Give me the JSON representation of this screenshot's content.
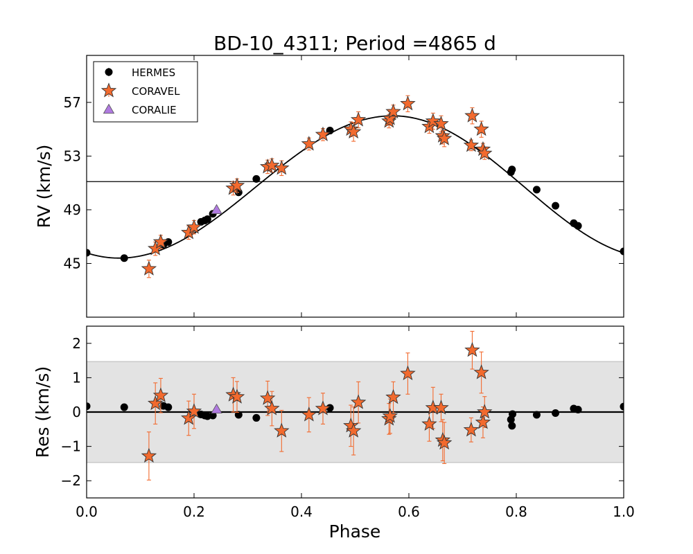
{
  "chart_data": [
    {
      "type": "scatter",
      "title": "BD-10_4311; Period =4865 d",
      "xlabel": "Phase",
      "ylabel": "RV (km/s)",
      "xlim": [
        0.0,
        1.0
      ],
      "ylim": [
        41.0,
        60.5
      ],
      "yticks": [
        45,
        49,
        53,
        57
      ],
      "ytick_labels": [
        "45",
        "49",
        "53",
        "57"
      ],
      "systemic_velocity": 51.1,
      "legend": {
        "placement": "top-left",
        "entries": [
          "HERMES",
          "CORAVEL",
          "CORALIE"
        ]
      },
      "series": [
        {
          "name": "HERMES",
          "marker": "circle",
          "color": "#000000",
          "points": [
            [
              0.0,
              45.8
            ],
            [
              0.07,
              45.4
            ],
            [
              0.143,
              46.4
            ],
            [
              0.152,
              46.6
            ],
            [
              0.213,
              48.1
            ],
            [
              0.22,
              48.2
            ],
            [
              0.225,
              48.3
            ],
            [
              0.235,
              48.7
            ],
            [
              0.283,
              50.3
            ],
            [
              0.316,
              51.3
            ],
            [
              0.453,
              54.9
            ],
            [
              0.79,
              51.8
            ],
            [
              0.792,
              52.0
            ],
            [
              0.838,
              50.5
            ],
            [
              0.873,
              49.3
            ],
            [
              0.907,
              48.0
            ],
            [
              0.915,
              47.8
            ],
            [
              1.0,
              45.9
            ]
          ]
        },
        {
          "name": "CORAVEL",
          "marker": "star",
          "color": "#f26a2e",
          "points": [
            [
              0.116,
              44.6,
              0.65
            ],
            [
              0.128,
              46.1,
              0.5
            ],
            [
              0.138,
              46.6,
              0.5
            ],
            [
              0.19,
              47.3,
              0.5
            ],
            [
              0.2,
              47.7,
              0.5
            ],
            [
              0.273,
              50.6,
              0.5
            ],
            [
              0.28,
              50.8,
              0.5
            ],
            [
              0.337,
              52.2,
              0.5
            ],
            [
              0.345,
              52.3,
              0.5
            ],
            [
              0.363,
              52.1,
              0.55
            ],
            [
              0.414,
              53.9,
              0.45
            ],
            [
              0.44,
              54.6,
              0.45
            ],
            [
              0.492,
              55.0,
              0.55
            ],
            [
              0.497,
              54.8,
              0.7
            ],
            [
              0.506,
              55.7,
              0.6
            ],
            [
              0.563,
              55.6,
              0.5
            ],
            [
              0.565,
              55.8,
              0.5
            ],
            [
              0.571,
              56.3,
              0.5
            ],
            [
              0.598,
              56.9,
              0.6
            ],
            [
              0.638,
              55.2,
              0.5
            ],
            [
              0.645,
              55.6,
              0.6
            ],
            [
              0.66,
              55.4,
              0.6
            ],
            [
              0.663,
              54.5,
              0.6
            ],
            [
              0.666,
              54.3,
              0.6
            ],
            [
              0.716,
              53.8,
              0.4
            ],
            [
              0.718,
              56.0,
              0.6
            ],
            [
              0.735,
              55.0,
              0.6
            ],
            [
              0.738,
              53.5,
              0.45
            ],
            [
              0.741,
              53.2,
              0.45
            ]
          ]
        },
        {
          "name": "CORALIE",
          "marker": "triangle",
          "color": "#b07ae0",
          "points": [
            [
              0.242,
              49.0
            ]
          ]
        }
      ],
      "model": {
        "type": "keplerian",
        "min": 45.4,
        "min_phase": 0.06,
        "max": 56.0,
        "max_phase": 0.57
      }
    },
    {
      "type": "scatter",
      "xlabel": "Phase",
      "ylabel": "Res (km/s)",
      "xlim": [
        0.0,
        1.0
      ],
      "ylim": [
        -2.5,
        2.5
      ],
      "xticks": [
        0.0,
        0.2,
        0.4,
        0.6,
        0.8,
        1.0
      ],
      "xtick_labels": [
        "0.0",
        "0.2",
        "0.4",
        "0.6",
        "0.8",
        "1.0"
      ],
      "yticks": [
        -2,
        -1,
        0,
        1,
        2
      ],
      "ytick_labels": [
        "−2",
        "−1",
        "0",
        "1",
        "2"
      ],
      "band": [
        -1.47,
        1.47
      ],
      "series": [
        {
          "name": "HERMES",
          "marker": "circle",
          "color": "#000000",
          "points": [
            [
              0.0,
              0.17
            ],
            [
              0.07,
              0.14
            ],
            [
              0.143,
              0.18
            ],
            [
              0.152,
              0.14
            ],
            [
              0.213,
              -0.07
            ],
            [
              0.22,
              -0.1
            ],
            [
              0.225,
              -0.12
            ],
            [
              0.235,
              -0.1
            ],
            [
              0.283,
              -0.08
            ],
            [
              0.316,
              -0.17
            ],
            [
              0.453,
              0.12
            ],
            [
              0.79,
              -0.22
            ],
            [
              0.792,
              -0.4
            ],
            [
              0.793,
              -0.06
            ],
            [
              0.838,
              -0.08
            ],
            [
              0.873,
              -0.03
            ],
            [
              0.907,
              0.1
            ],
            [
              0.915,
              0.07
            ],
            [
              1.0,
              0.16
            ]
          ]
        },
        {
          "name": "CORAVEL",
          "marker": "star",
          "color": "#f26a2e",
          "points": [
            [
              0.116,
              -1.28,
              0.7
            ],
            [
              0.128,
              0.25,
              0.6
            ],
            [
              0.138,
              0.48,
              0.5
            ],
            [
              0.19,
              -0.18,
              0.5
            ],
            [
              0.2,
              0.02,
              0.5
            ],
            [
              0.273,
              0.5,
              0.5
            ],
            [
              0.28,
              0.44,
              0.45
            ],
            [
              0.337,
              0.4,
              0.5
            ],
            [
              0.345,
              0.1,
              0.5
            ],
            [
              0.363,
              -0.55,
              0.6
            ],
            [
              0.414,
              -0.08,
              0.5
            ],
            [
              0.44,
              0.1,
              0.45
            ],
            [
              0.492,
              -0.4,
              0.6
            ],
            [
              0.497,
              -0.55,
              0.7
            ],
            [
              0.506,
              0.28,
              0.6
            ],
            [
              0.563,
              -0.2,
              0.45
            ],
            [
              0.565,
              -0.12,
              0.5
            ],
            [
              0.571,
              0.43,
              0.45
            ],
            [
              0.598,
              1.12,
              0.6
            ],
            [
              0.638,
              -0.35,
              0.5
            ],
            [
              0.645,
              0.12,
              0.6
            ],
            [
              0.66,
              0.12,
              0.4
            ],
            [
              0.663,
              -0.82,
              0.6
            ],
            [
              0.666,
              -0.9,
              0.6
            ],
            [
              0.716,
              -0.52,
              0.35
            ],
            [
              0.718,
              1.8,
              0.55
            ],
            [
              0.735,
              1.15,
              0.6
            ],
            [
              0.738,
              -0.3,
              0.45
            ],
            [
              0.741,
              0.0,
              0.45
            ]
          ]
        },
        {
          "name": "CORALIE",
          "marker": "triangle",
          "color": "#b07ae0",
          "points": [
            [
              0.242,
              0.08
            ]
          ]
        }
      ]
    }
  ]
}
